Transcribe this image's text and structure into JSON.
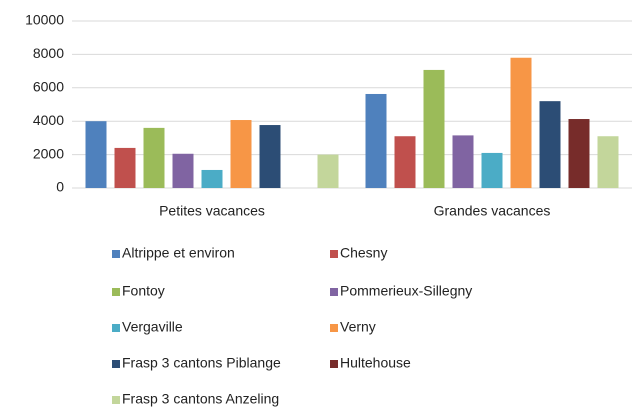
{
  "chart_data": {
    "type": "bar",
    "categories": [
      "Petites vacances",
      "Grandes vacances"
    ],
    "series": [
      {
        "name": "Altrippe et environ",
        "color": "#4f81bd",
        "values": [
          4000,
          5630
        ]
      },
      {
        "name": "Chesny",
        "color": "#c0504d",
        "values": [
          2400,
          3100
        ]
      },
      {
        "name": "Fontoy",
        "color": "#9bbb59",
        "values": [
          3600,
          7070
        ]
      },
      {
        "name": "Pommerieux-Sillegny",
        "color": "#8064a2",
        "values": [
          2050,
          3150
        ]
      },
      {
        "name": "Vergaville",
        "color": "#4bacc6",
        "values": [
          1080,
          2100
        ]
      },
      {
        "name": "Verny",
        "color": "#f79646",
        "values": [
          4070,
          7800
        ]
      },
      {
        "name": "Frasp 3 cantons Piblange",
        "color": "#2c4d75",
        "values": [
          3770,
          5200
        ]
      },
      {
        "name": "Hultehouse",
        "color": "#772c2a",
        "values": [
          null,
          4130
        ]
      },
      {
        "name": "Frasp 3 cantons Anzeling",
        "color": "#c3d69b",
        "values": [
          2000,
          3100
        ]
      }
    ],
    "ylim": [
      0,
      10000
    ],
    "yticks": [
      0,
      2000,
      4000,
      6000,
      8000,
      10000
    ],
    "grid": true
  }
}
